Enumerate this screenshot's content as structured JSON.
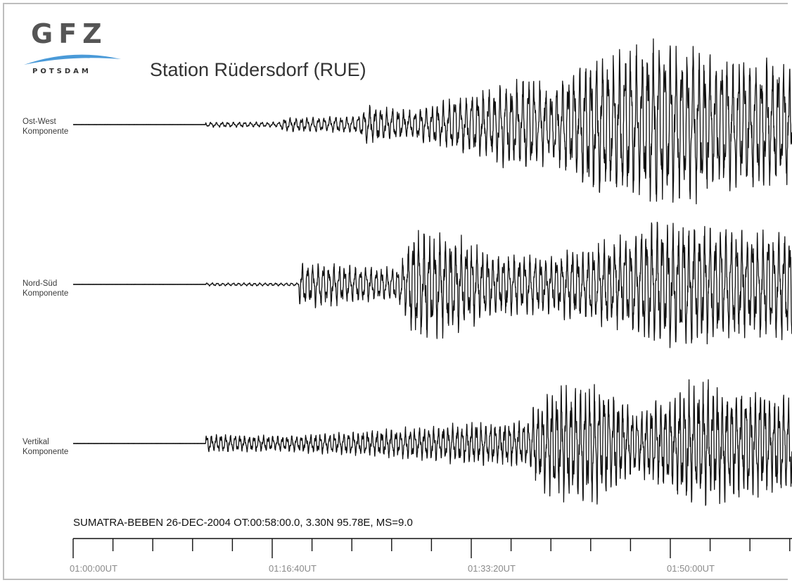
{
  "logo": {
    "letters": "GFZ",
    "subtitle": "POTSDAM",
    "swoosh_color": "#4a9ad8"
  },
  "header": {
    "title": "Station Rüdersdorf (RUE)"
  },
  "footer": {
    "event_info": "SUMATRA-BEBEN 26-DEC-2004 OT:00:58:00.0, 3.30N 95.78E, MS=9.0"
  },
  "chart_data": {
    "type": "line",
    "title": "Station Rüdersdorf (RUE)",
    "x_axis": {
      "unit": "UT",
      "range": [
        "01:00:00UT",
        "02:03:20UT"
      ],
      "major_tick_labels": [
        "01:00:00UT",
        "01:16:40UT",
        "01:33:20UT",
        "01:50:00UT"
      ],
      "major_tick_interval_seconds": 1000,
      "minor_tick_interval_seconds": 200
    },
    "series": [
      {
        "name_line1": "Ost-West",
        "name_line2": "Komponente",
        "quiet_until_seconds": 700,
        "envelope": [
          [
            0,
            0.01
          ],
          [
            700,
            0.01
          ],
          [
            701,
            0.1
          ],
          [
            1100,
            0.1
          ],
          [
            1101,
            0.25
          ],
          [
            1500,
            0.35
          ],
          [
            1550,
            0.75
          ],
          [
            1800,
            0.55
          ],
          [
            2000,
            1.0
          ],
          [
            2420,
            1.9
          ],
          [
            2520,
            1.3
          ],
          [
            2700,
            2.5
          ],
          [
            3100,
            3.3
          ],
          [
            3400,
            2.6
          ],
          [
            3800,
            2.4
          ]
        ],
        "period_seconds": 30
      },
      {
        "name_line1": "Nord-Süd",
        "name_line2": "Komponente",
        "quiet_until_seconds": 700,
        "envelope": [
          [
            0,
            0.01
          ],
          [
            700,
            0.01
          ],
          [
            701,
            0.06
          ],
          [
            1190,
            0.06
          ],
          [
            1200,
            0.9
          ],
          [
            1500,
            0.7
          ],
          [
            1700,
            0.65
          ],
          [
            1750,
            1.1
          ],
          [
            1800,
            2.2
          ],
          [
            2000,
            1.9
          ],
          [
            2200,
            1.3
          ],
          [
            2500,
            1.1
          ],
          [
            2900,
            1.8
          ],
          [
            3100,
            2.6
          ],
          [
            3400,
            2.2
          ],
          [
            3800,
            2.0
          ]
        ],
        "period_seconds": 28
      },
      {
        "name_line1": "Vertikal",
        "name_line2": "Komponente",
        "quiet_until_seconds": 700,
        "envelope": [
          [
            0,
            0.01
          ],
          [
            700,
            0.01
          ],
          [
            701,
            0.35
          ],
          [
            1100,
            0.3
          ],
          [
            1500,
            0.45
          ],
          [
            2100,
            0.8
          ],
          [
            2400,
            0.9
          ],
          [
            2460,
            1.7
          ],
          [
            2600,
            2.3
          ],
          [
            2800,
            2.2
          ],
          [
            2980,
            1.2
          ],
          [
            3100,
            1.8
          ],
          [
            3300,
            2.4
          ],
          [
            3550,
            2.1
          ],
          [
            3800,
            1.9
          ]
        ],
        "period_seconds": 25
      }
    ],
    "amplitude_unit": "relative",
    "grid": false,
    "legend": "none"
  }
}
